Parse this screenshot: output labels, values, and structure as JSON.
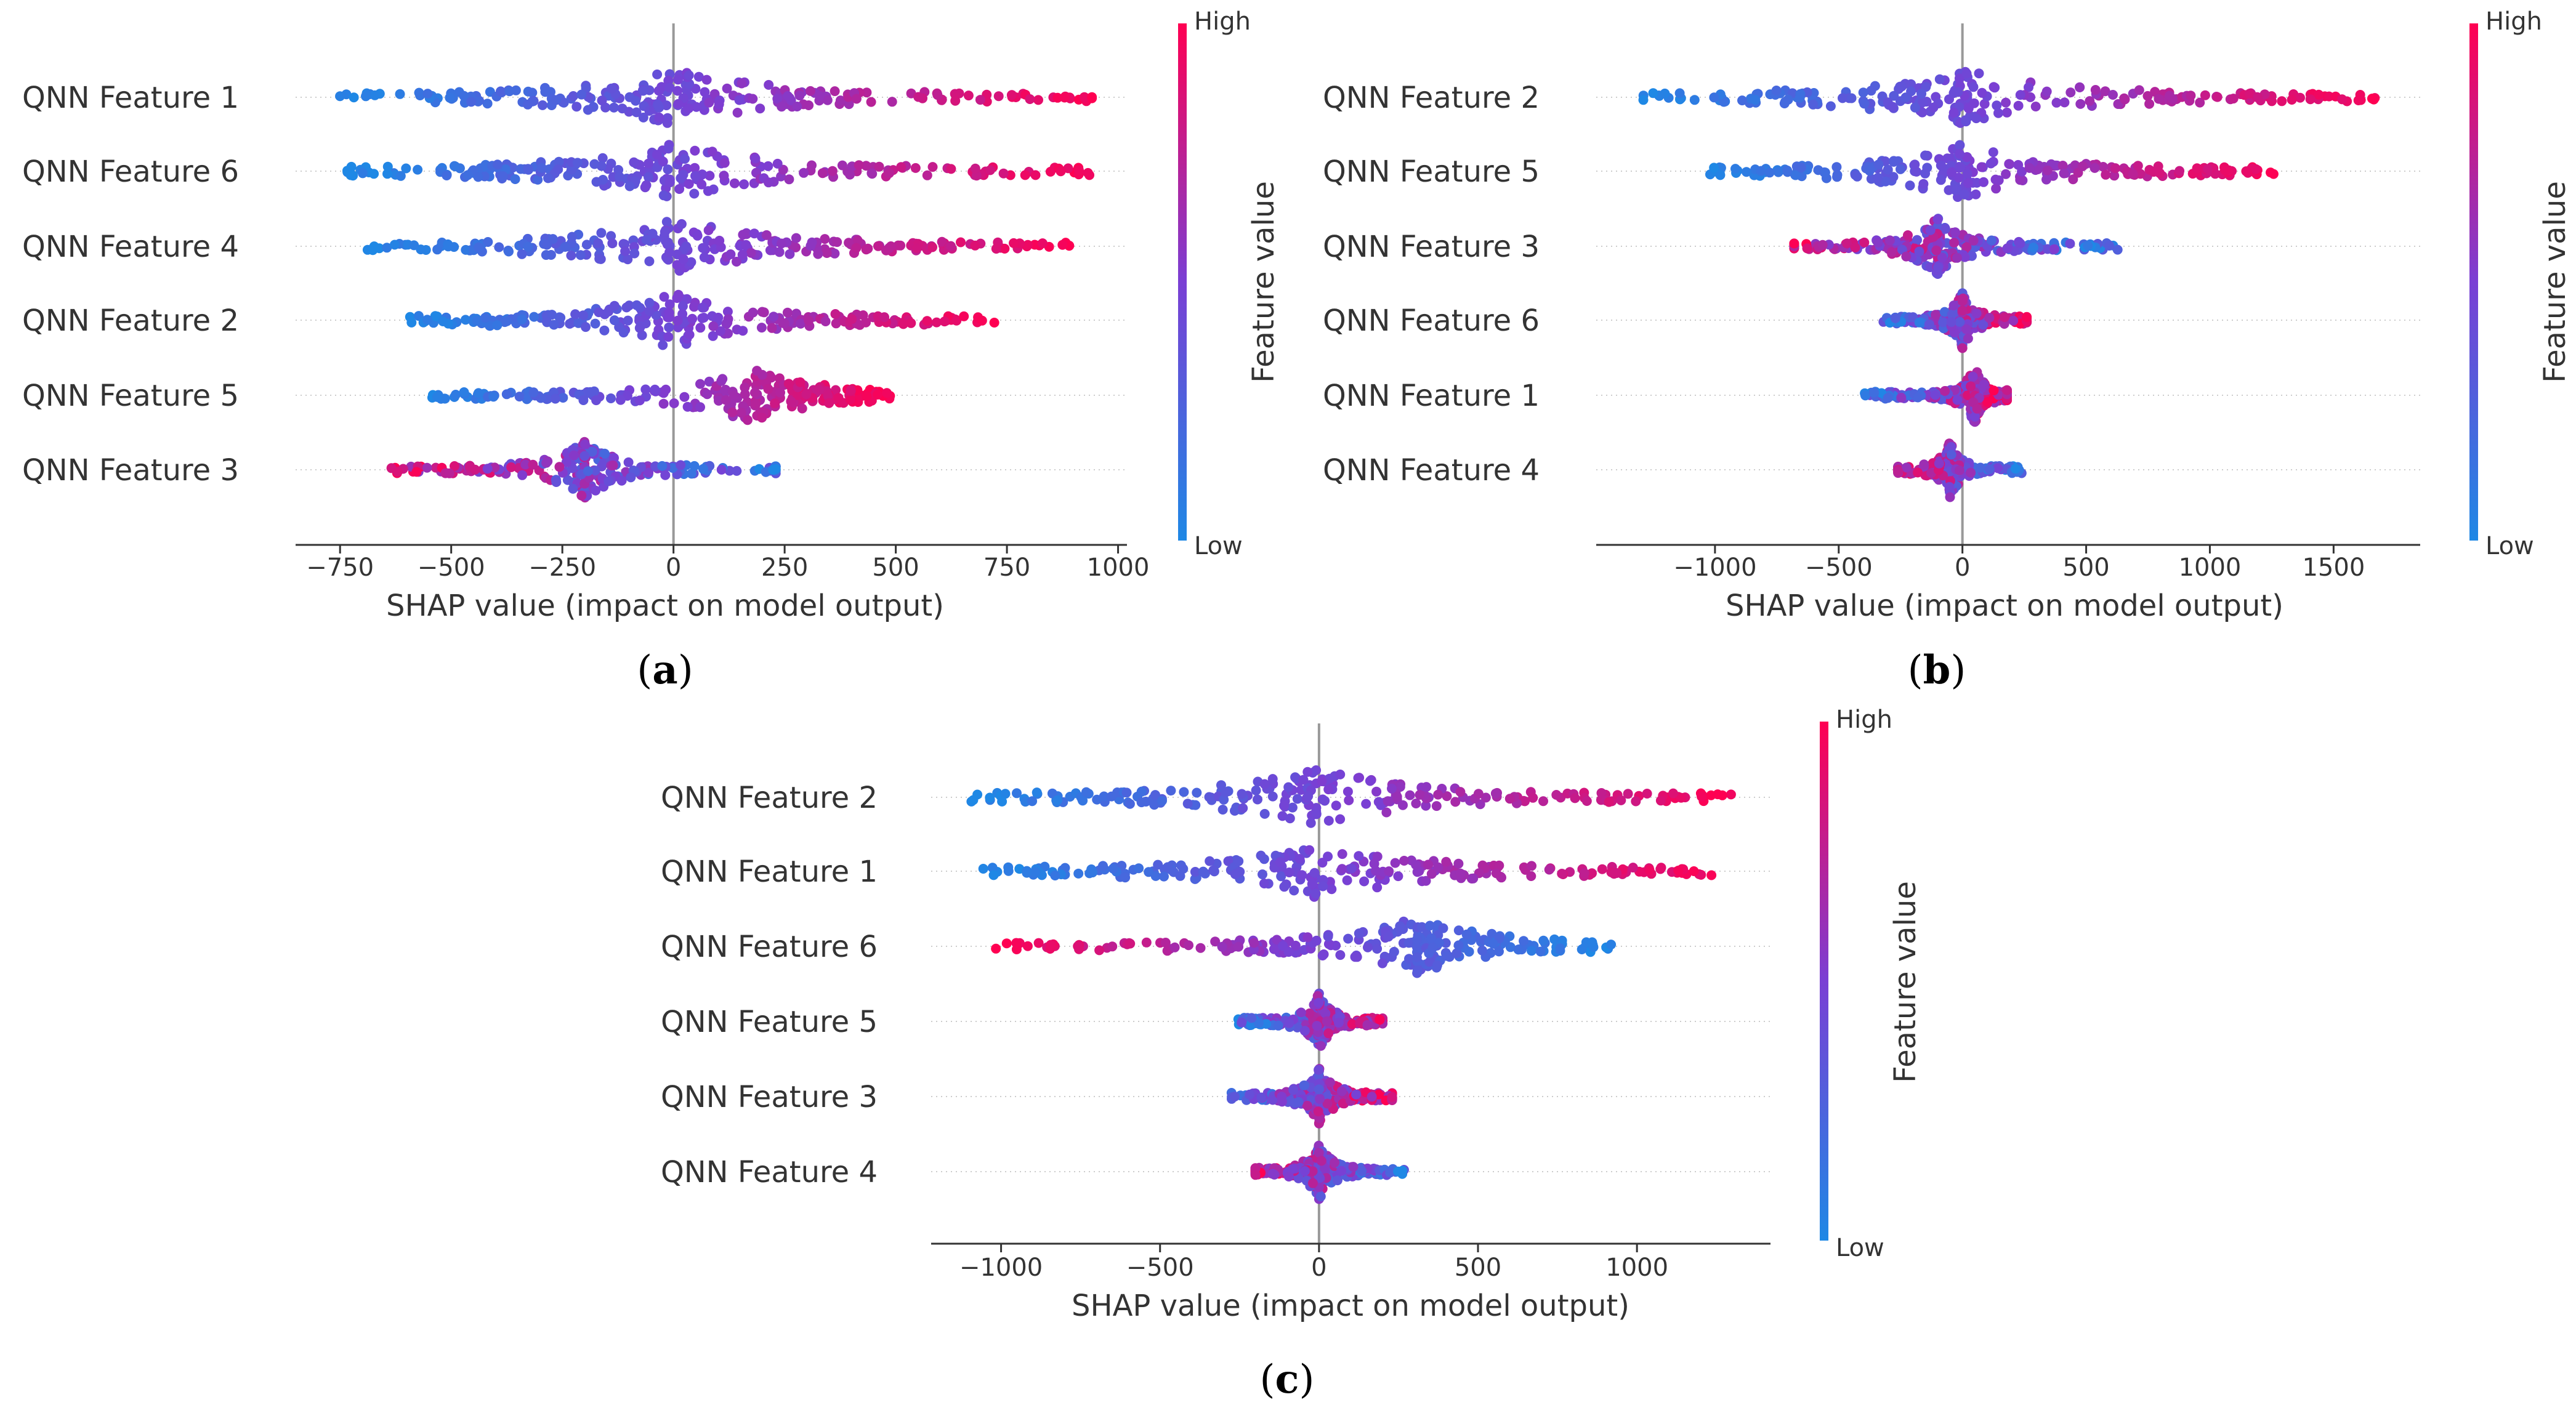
{
  "figure": {
    "panels": [
      {
        "label_open": "(",
        "label_letter": "a",
        "label_close": ")"
      },
      {
        "label_open": "(",
        "label_letter": "b",
        "label_close": ")"
      },
      {
        "label_open": "(",
        "label_letter": "c",
        "label_close": ")"
      }
    ]
  },
  "colors": {
    "low": "#1e88e5",
    "mid": "#7a3fd4",
    "high": "#ff0052",
    "zero_line": "#999999",
    "axis": "#333333"
  },
  "chart_data": [
    {
      "type": "scatter",
      "subtype": "shap-beeswarm",
      "xlabel": "SHAP value (impact on model output)",
      "xlim": [
        -850,
        1020
      ],
      "xticks": [
        -750,
        -500,
        -250,
        0,
        250,
        500,
        750,
        1000
      ],
      "xtick_labels": [
        "−750",
        "−500",
        "−250",
        "0",
        "250",
        "500",
        "750",
        "1000"
      ],
      "colorbar": {
        "label": "Feature value",
        "high": "High",
        "low": "Low"
      },
      "features": [
        {
          "name": "QNN Feature 1",
          "xmin": -760,
          "xmax": 960,
          "low_side": "negative",
          "shape": "split",
          "split_at": 0
        },
        {
          "name": "QNN Feature 6",
          "xmin": -760,
          "xmax": 960,
          "low_side": "negative",
          "shape": "split",
          "split_at": 0
        },
        {
          "name": "QNN Feature 4",
          "xmin": -710,
          "xmax": 920,
          "low_side": "negative",
          "shape": "split",
          "split_at": 0
        },
        {
          "name": "QNN Feature 2",
          "xmin": -620,
          "xmax": 740,
          "low_side": "negative",
          "shape": "split",
          "split_at": 0
        },
        {
          "name": "QNN Feature 5",
          "xmin": -560,
          "xmax": 490,
          "low_side": "negative",
          "shape": "split",
          "split_at": 175
        },
        {
          "name": "QNN Feature 3",
          "xmin": -650,
          "xmax": 230,
          "low_side": "positive",
          "shape": "cluster",
          "center": -200
        }
      ]
    },
    {
      "type": "scatter",
      "subtype": "shap-beeswarm",
      "xlabel": "SHAP value (impact on model output)",
      "xlim": [
        -1480,
        1850
      ],
      "xticks": [
        -1000,
        -500,
        0,
        500,
        1000,
        1500
      ],
      "xtick_labels": [
        "−1000",
        "−500",
        "0",
        "500",
        "1000",
        "1500"
      ],
      "colorbar": {
        "label": "Feature value",
        "high": "High",
        "low": "Low"
      },
      "features": [
        {
          "name": "QNN Feature 2",
          "xmin": -1330,
          "xmax": 1700,
          "low_side": "negative",
          "shape": "split",
          "split_at": 0
        },
        {
          "name": "QNN Feature 5",
          "xmin": -1050,
          "xmax": 1290,
          "low_side": "negative",
          "shape": "split",
          "split_at": 0
        },
        {
          "name": "QNN Feature 3",
          "xmin": -680,
          "xmax": 630,
          "low_side": "positive",
          "shape": "cluster",
          "center": -100
        },
        {
          "name": "QNN Feature 6",
          "xmin": -320,
          "xmax": 260,
          "low_side": "negative",
          "shape": "cluster",
          "center": 0
        },
        {
          "name": "QNN Feature 1",
          "xmin": -400,
          "xmax": 180,
          "low_side": "negative",
          "shape": "cluster",
          "center": 50
        },
        {
          "name": "QNN Feature 4",
          "xmin": -260,
          "xmax": 240,
          "low_side": "positive",
          "shape": "cluster",
          "center": -50
        }
      ]
    },
    {
      "type": "scatter",
      "subtype": "shap-beeswarm",
      "xlabel": "SHAP value (impact on model output)",
      "xlim": [
        -1220,
        1420
      ],
      "xticks": [
        -1000,
        -500,
        0,
        500,
        1000
      ],
      "xtick_labels": [
        "−1000",
        "−500",
        "0",
        "500",
        "1000"
      ],
      "colorbar": {
        "label": "Feature value",
        "high": "High",
        "low": "Low"
      },
      "features": [
        {
          "name": "QNN Feature 2",
          "xmin": -1110,
          "xmax": 1320,
          "low_side": "negative",
          "shape": "split",
          "split_at": 0
        },
        {
          "name": "QNN Feature 1",
          "xmin": -1070,
          "xmax": 1290,
          "low_side": "negative",
          "shape": "split",
          "split_at": 0
        },
        {
          "name": "QNN Feature 6",
          "xmin": -1050,
          "xmax": 930,
          "low_side": "positive",
          "shape": "split",
          "split_at": 300
        },
        {
          "name": "QNN Feature 5",
          "xmin": -260,
          "xmax": 200,
          "low_side": "negative",
          "shape": "cluster",
          "center": 0
        },
        {
          "name": "QNN Feature 3",
          "xmin": -320,
          "xmax": 230,
          "low_side": "negative",
          "shape": "cluster",
          "center": 0
        },
        {
          "name": "QNN Feature 4",
          "xmin": -200,
          "xmax": 270,
          "low_side": "positive",
          "shape": "cluster",
          "center": 0
        }
      ]
    }
  ]
}
